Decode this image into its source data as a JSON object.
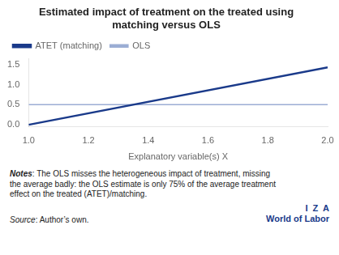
{
  "chart_data": {
    "type": "line",
    "title": [
      "Estimated impact of treatment on the treated using",
      "matching versus OLS"
    ],
    "xlabel": "Explanatory variable(s) X",
    "x": [
      1.0,
      2.0
    ],
    "series": [
      {
        "name": "ATET (matching)",
        "color": "#1a3a8a",
        "values": [
          0.0,
          1.4286
        ]
      },
      {
        "name": "OLS",
        "color": "#9badd4",
        "values": [
          0.5,
          0.5
        ]
      }
    ],
    "xlim": [
      1.0,
      2.0
    ],
    "xticks": [
      {
        "value": 1,
        "label": "1.0"
      },
      1.2,
      1.4,
      1.6,
      1.8,
      {
        "value": 2,
        "label": "2.0"
      }
    ],
    "ylim": [
      -0.05,
      1.65
    ],
    "yticks": [
      {
        "value": 0,
        "label": "0.0"
      },
      0.5,
      {
        "value": 1,
        "label": "1.0"
      },
      1.5
    ],
    "grid": false,
    "legend": "upper left",
    "annotations": [
      "Notes",
      ": The OLS misses the heterogeneous impact of treatment, missing\nthe average badly: the OLS estimate is only 75% of the average treatment\neffect on the treated (ATET)/matching.",
      "Source",
      ": Author’s own.",
      "I  Z  A",
      "World of Labor"
    ]
  }
}
